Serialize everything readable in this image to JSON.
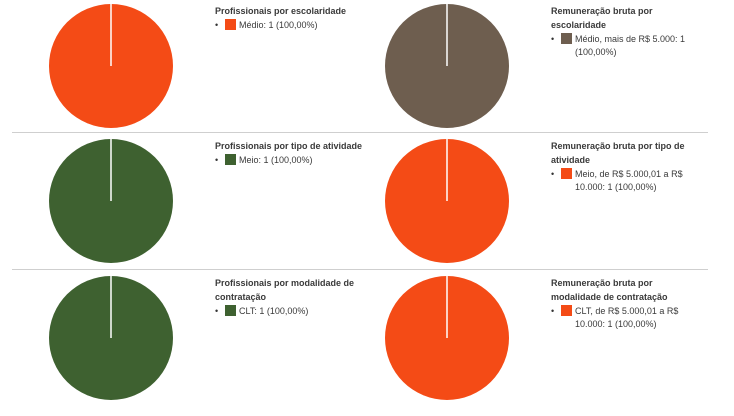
{
  "chart_data": [
    {
      "type": "pie",
      "title": "Profissionais por escolaridade",
      "slices": [
        {
          "label": "Médio: 1 (100,00%)",
          "value": 1,
          "color": "#f44b16"
        }
      ]
    },
    {
      "type": "pie",
      "title": "Remuneração bruta por escolaridade",
      "slices": [
        {
          "label": "Médio, mais de R$ 5.000: 1 (100,00%)",
          "value": 1,
          "color": "#6e5e4f"
        }
      ]
    },
    {
      "type": "pie",
      "title": "Profissionais por tipo de atividade",
      "slices": [
        {
          "label": "Meio: 1 (100,00%)",
          "value": 1,
          "color": "#3e6130"
        }
      ]
    },
    {
      "type": "pie",
      "title": "Remuneração bruta por tipo de atividade",
      "slices": [
        {
          "label": "Meio, de R$ 5.000,01 a R$ 10.000: 1 (100,00%)",
          "value": 1,
          "color": "#f44b16"
        }
      ]
    },
    {
      "type": "pie",
      "title": "Profissionais por modalidade de contratação",
      "slices": [
        {
          "label": "CLT: 1 (100,00%)",
          "value": 1,
          "color": "#3e6130"
        }
      ]
    },
    {
      "type": "pie",
      "title": "Remuneração bruta por modalidade de contratação",
      "slices": [
        {
          "label": "CLT, de R$ 5.000,01 a R$ 10.000: 1 (100,00%)",
          "value": 1,
          "color": "#f44b16"
        }
      ]
    }
  ]
}
